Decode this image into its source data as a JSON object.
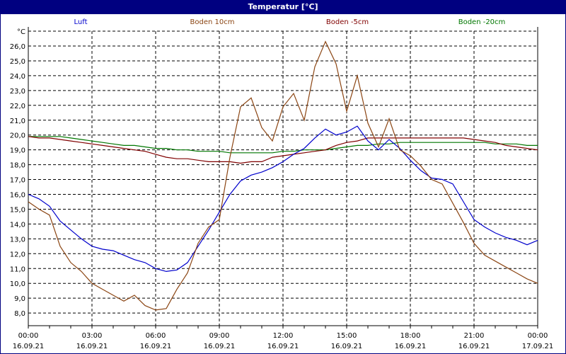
{
  "window": {
    "title": "Temperatur [°C]"
  },
  "chart_data": {
    "type": "line",
    "title": "Temperatur [°C]",
    "ylabel": "°C",
    "xlabel": "",
    "ylim": [
      7.2,
      27
    ],
    "grid": true,
    "legend_position": "top",
    "yticks": [
      "26,0",
      "25,0",
      "24,0",
      "23,0",
      "22,0",
      "21,0",
      "20,0",
      "19,0",
      "18,0",
      "17,0",
      "16,0",
      "15,0",
      "14,0",
      "13,0",
      "12,0",
      "11,0",
      "10,0",
      "9,0",
      "8,0"
    ],
    "xticks": [
      {
        "time": "00:00",
        "date": "16.09.21"
      },
      {
        "time": "03:00",
        "date": "16.09.21"
      },
      {
        "time": "06:00",
        "date": "16.09.21"
      },
      {
        "time": "09:00",
        "date": "16.09.21"
      },
      {
        "time": "12:00",
        "date": "16.09.21"
      },
      {
        "time": "15:00",
        "date": "16.09.21"
      },
      {
        "time": "18:00",
        "date": "16.09.21"
      },
      {
        "time": "21:00",
        "date": "16.09.21"
      },
      {
        "time": "00:00",
        "date": "17.09.21"
      }
    ],
    "x_hours": [
      0,
      0.5,
      1,
      1.5,
      2,
      2.5,
      3,
      3.5,
      4,
      4.5,
      5,
      5.5,
      6,
      6.5,
      7,
      7.5,
      8,
      8.5,
      9,
      9.5,
      10,
      10.5,
      11,
      11.5,
      12,
      12.5,
      13,
      13.5,
      14,
      14.5,
      15,
      15.5,
      16,
      16.5,
      17,
      17.5,
      18,
      18.5,
      19,
      19.5,
      20,
      20.5,
      21,
      21.5,
      22,
      22.5,
      23,
      23.5,
      24
    ],
    "series": [
      {
        "name": "Luft",
        "color": "#0000cc",
        "values": [
          16.0,
          15.7,
          15.2,
          14.2,
          13.6,
          13.0,
          12.5,
          12.3,
          12.2,
          11.9,
          11.6,
          11.4,
          11.0,
          10.8,
          10.9,
          11.4,
          12.5,
          13.6,
          14.8,
          16.0,
          16.9,
          17.3,
          17.5,
          17.8,
          18.2,
          18.7,
          19.1,
          19.8,
          20.4,
          20.0,
          20.2,
          20.6,
          19.6,
          19.0,
          19.7,
          19.1,
          18.3,
          17.6,
          17.1,
          17.0,
          16.7,
          15.5,
          14.3,
          13.8,
          13.4,
          13.1,
          12.9,
          12.6,
          12.9
        ]
      },
      {
        "name": "Boden 10cm",
        "color": "#8b4513",
        "values": [
          15.5,
          15.0,
          14.6,
          12.5,
          11.4,
          10.8,
          10.0,
          9.6,
          9.2,
          8.8,
          9.2,
          8.5,
          8.2,
          8.3,
          9.6,
          10.7,
          12.7,
          13.8,
          14.3,
          18.5,
          21.9,
          22.5,
          20.5,
          19.6,
          21.9,
          22.8,
          21.0,
          24.6,
          26.3,
          24.8,
          21.6,
          24.0,
          20.8,
          19.2,
          21.1,
          19.0,
          18.6,
          17.9,
          17.0,
          16.7,
          15.4,
          14.1,
          12.7,
          11.9,
          11.5,
          11.1,
          10.7,
          10.3,
          10.0
        ]
      },
      {
        "name": "Boden -5cm",
        "color": "#800000",
        "values": [
          19.9,
          19.8,
          19.8,
          19.7,
          19.6,
          19.5,
          19.4,
          19.3,
          19.2,
          19.1,
          19.0,
          18.9,
          18.7,
          18.5,
          18.4,
          18.4,
          18.3,
          18.2,
          18.2,
          18.2,
          18.1,
          18.2,
          18.2,
          18.5,
          18.6,
          18.7,
          18.8,
          18.9,
          19.0,
          19.3,
          19.5,
          19.6,
          19.8,
          19.8,
          19.8,
          19.8,
          19.8,
          19.8,
          19.8,
          19.8,
          19.8,
          19.8,
          19.7,
          19.6,
          19.5,
          19.3,
          19.2,
          19.1,
          19.0
        ]
      },
      {
        "name": "Boden -20cm",
        "color": "#007700",
        "values": [
          19.9,
          19.9,
          19.9,
          19.9,
          19.8,
          19.7,
          19.6,
          19.5,
          19.4,
          19.3,
          19.3,
          19.2,
          19.1,
          19.1,
          19.0,
          19.0,
          18.9,
          18.9,
          18.9,
          18.8,
          18.8,
          18.8,
          18.8,
          18.8,
          18.9,
          18.9,
          19.0,
          19.0,
          19.0,
          19.1,
          19.2,
          19.3,
          19.3,
          19.4,
          19.4,
          19.5,
          19.5,
          19.5,
          19.5,
          19.5,
          19.5,
          19.5,
          19.5,
          19.5,
          19.4,
          19.4,
          19.4,
          19.3,
          19.3
        ]
      }
    ]
  }
}
